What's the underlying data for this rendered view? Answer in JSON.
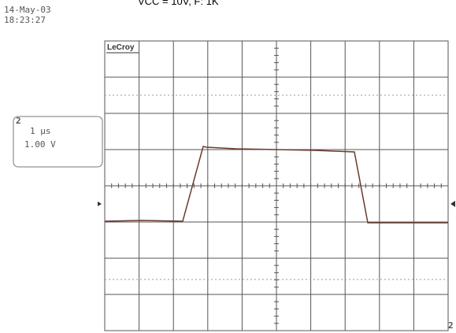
{
  "header": {
    "title": "VCC = 10V, F: 1K",
    "date": "14-May-03",
    "time": "18:23:27"
  },
  "screen": {
    "brand": "LeCroy",
    "channel_marker": "2"
  },
  "channel_box": {
    "channel": "2",
    "timebase": "1 µs",
    "volts_per_div": "1.00 V"
  }
}
